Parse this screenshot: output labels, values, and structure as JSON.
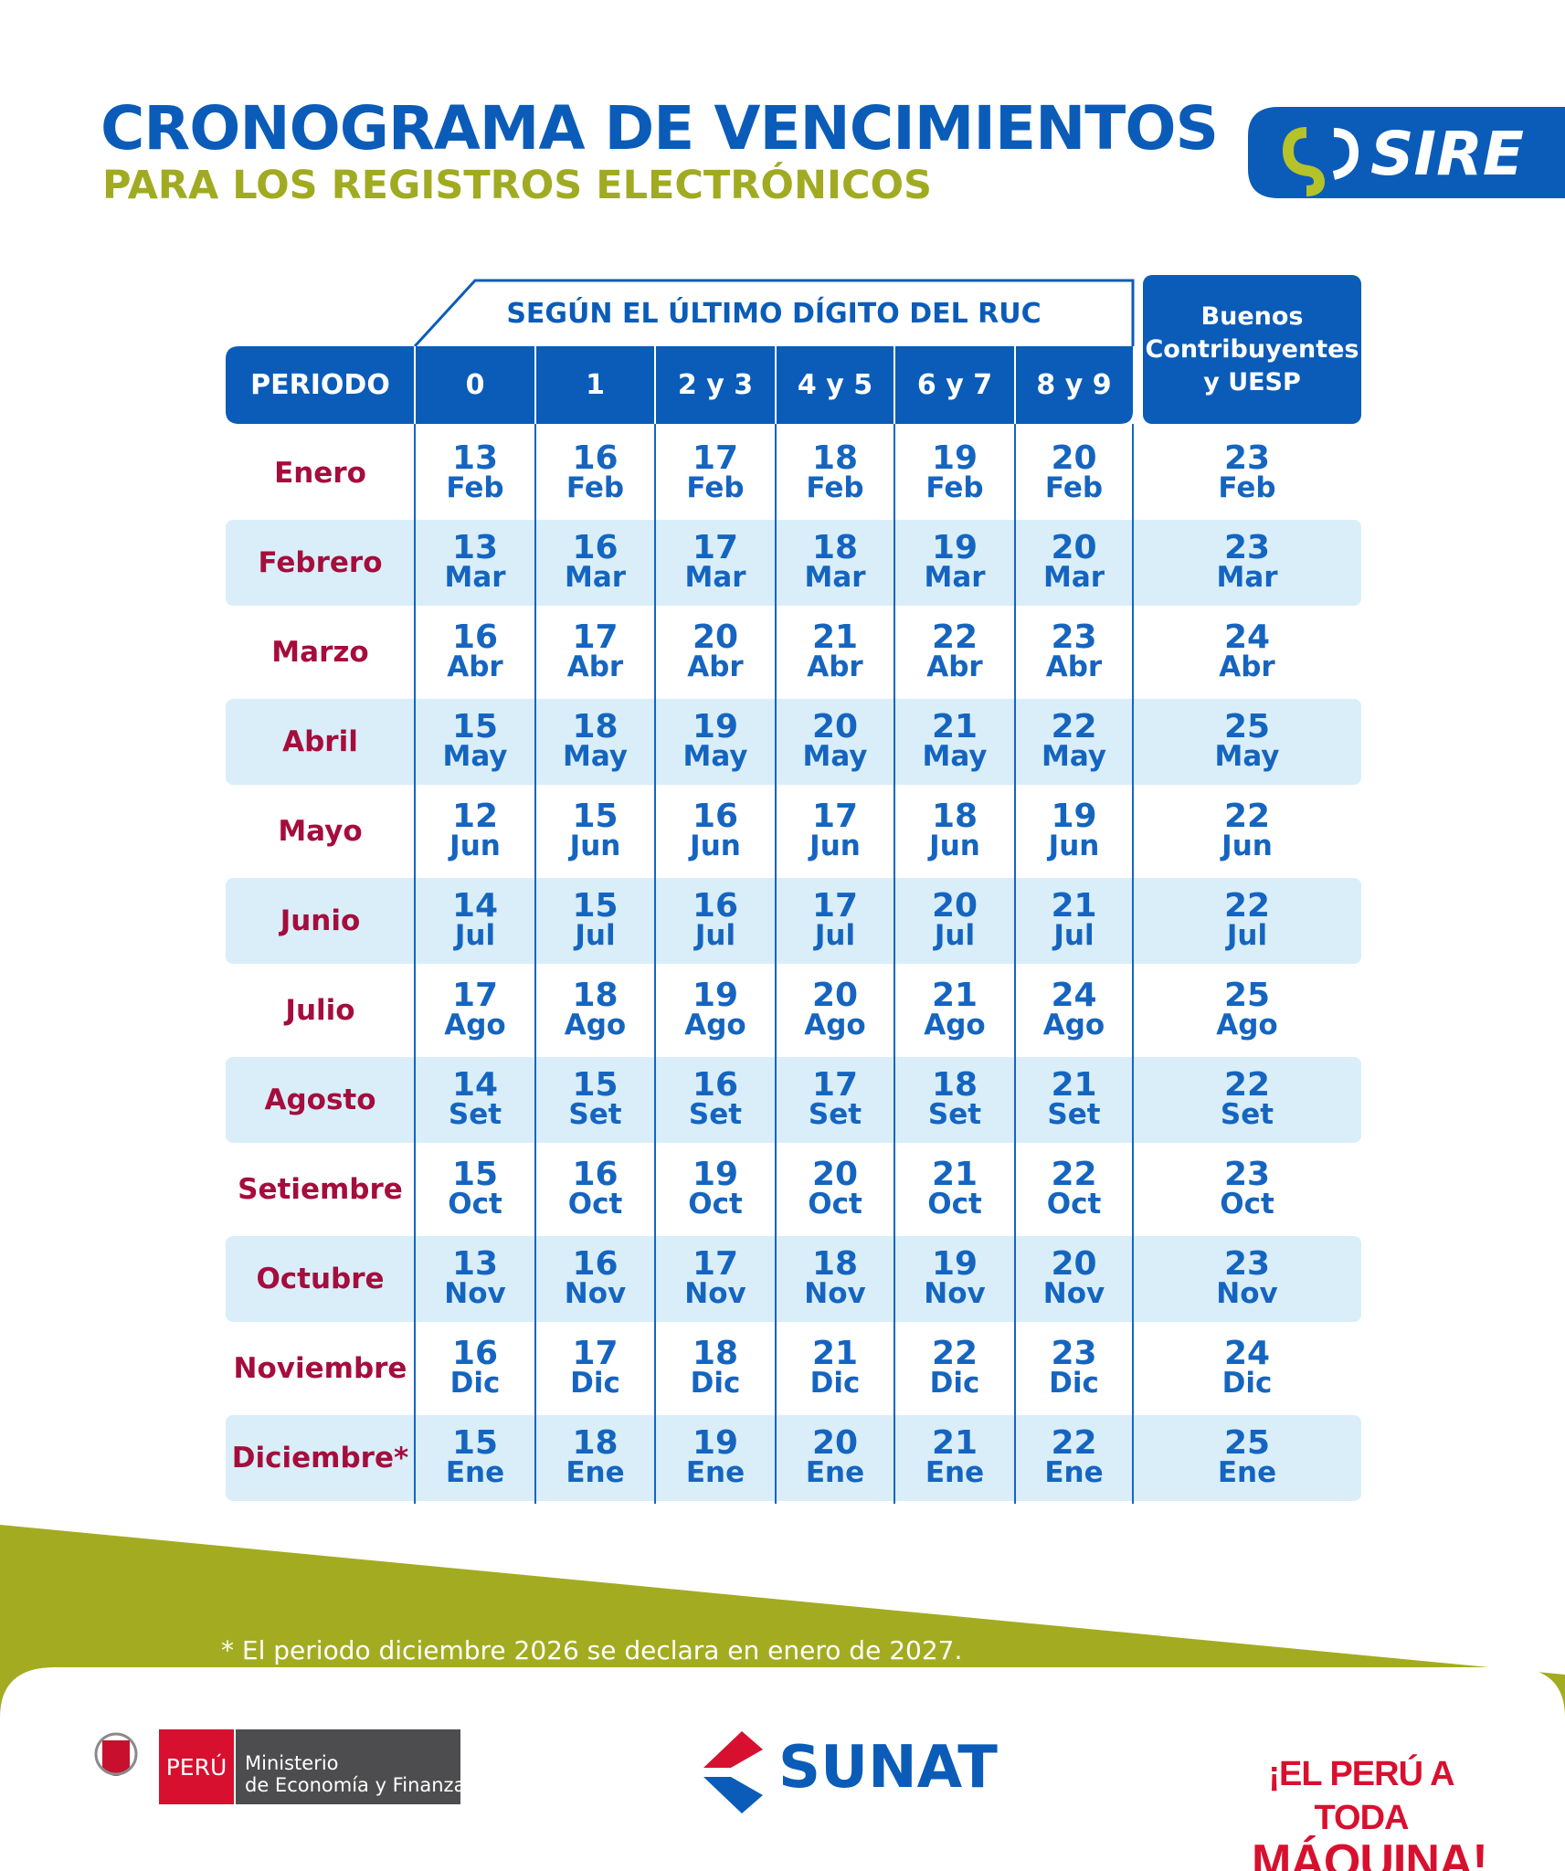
{
  "header": {
    "title": "CRONOGRAMA DE VENCIMIENTOS",
    "subtitle": "PARA LOS REGISTROS ELECTRÓNICOS",
    "logo": "SIRE"
  },
  "table": {
    "group_header": "SEGÚN EL ÚLTIMO DÍGITO DEL RUC",
    "columns": [
      "PERIODO",
      "0",
      "1",
      "2 y 3",
      "4 y 5",
      "6 y 7",
      "8 y 9"
    ],
    "special_column": [
      "Buenos",
      "Contribuyentes",
      "y UESP"
    ],
    "rows": [
      {
        "period": "Enero",
        "days": [
          13,
          16,
          17,
          18,
          19,
          20,
          23
        ],
        "month": "Feb"
      },
      {
        "period": "Febrero",
        "days": [
          13,
          16,
          17,
          18,
          19,
          20,
          23
        ],
        "month": "Mar"
      },
      {
        "period": "Marzo",
        "days": [
          16,
          17,
          20,
          21,
          22,
          23,
          24
        ],
        "month": "Abr"
      },
      {
        "period": "Abril",
        "days": [
          15,
          18,
          19,
          20,
          21,
          22,
          25
        ],
        "month": "May"
      },
      {
        "period": "Mayo",
        "days": [
          12,
          15,
          16,
          17,
          18,
          19,
          22
        ],
        "month": "Jun"
      },
      {
        "period": "Junio",
        "days": [
          14,
          15,
          16,
          17,
          20,
          21,
          22
        ],
        "month": "Jul"
      },
      {
        "period": "Julio",
        "days": [
          17,
          18,
          19,
          20,
          21,
          24,
          25
        ],
        "month": "Ago"
      },
      {
        "period": "Agosto",
        "days": [
          14,
          15,
          16,
          17,
          18,
          21,
          22
        ],
        "month": "Set"
      },
      {
        "period": "Setiembre",
        "days": [
          15,
          16,
          19,
          20,
          21,
          22,
          23
        ],
        "month": "Oct"
      },
      {
        "period": "Octubre",
        "days": [
          13,
          16,
          17,
          18,
          19,
          20,
          23
        ],
        "month": "Nov"
      },
      {
        "period": "Noviembre",
        "days": [
          16,
          17,
          18,
          21,
          22,
          23,
          24
        ],
        "month": "Dic"
      },
      {
        "period": "Diciembre*",
        "days": [
          15,
          18,
          19,
          20,
          21,
          22,
          25
        ],
        "month": "Ene"
      }
    ]
  },
  "footnote": "* El periodo diciembre 2026 se declara en enero de 2027.",
  "footer": {
    "country": "PERÚ",
    "ministry": [
      "Ministerio",
      "de Economía y Finanzas"
    ],
    "agency": "SUNAT",
    "slogan": [
      "¡EL PERÚ A TODA",
      "MÁQUINA!"
    ]
  }
}
